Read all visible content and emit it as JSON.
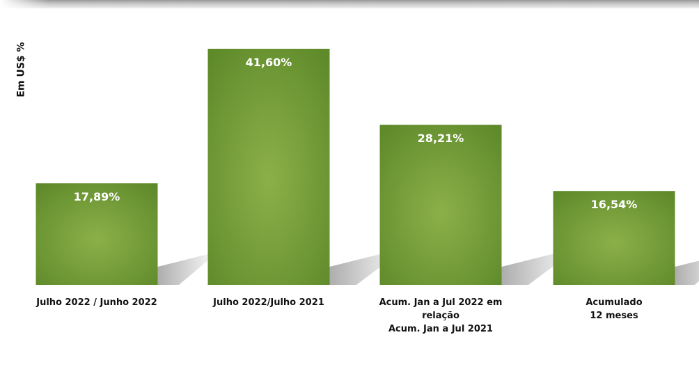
{
  "chart_data": {
    "type": "bar",
    "title": "",
    "ylabel": "Em US$ %",
    "xlabel": "",
    "ylim": [
      0,
      45
    ],
    "grid": false,
    "legend": "none",
    "categories": [
      [
        "Julho 2022 / Junho 2022"
      ],
      [
        "Julho 2022/Julho 2021"
      ],
      [
        "Acum. Jan a Jul 2022 em",
        "relação",
        "Acum. Jan a Jul 2021"
      ],
      [
        "Acumulado",
        "12 meses"
      ]
    ],
    "values": [
      17.89,
      41.6,
      28.21,
      16.54
    ],
    "value_labels": [
      "17,89%",
      "41,60%",
      "28,21%",
      "16,54%"
    ]
  },
  "colors": {
    "bar_center": "#8bb04a",
    "bar_edge": "#5f8a2a",
    "label_text": "#ffffff",
    "shadow": "#a9a9a9"
  }
}
